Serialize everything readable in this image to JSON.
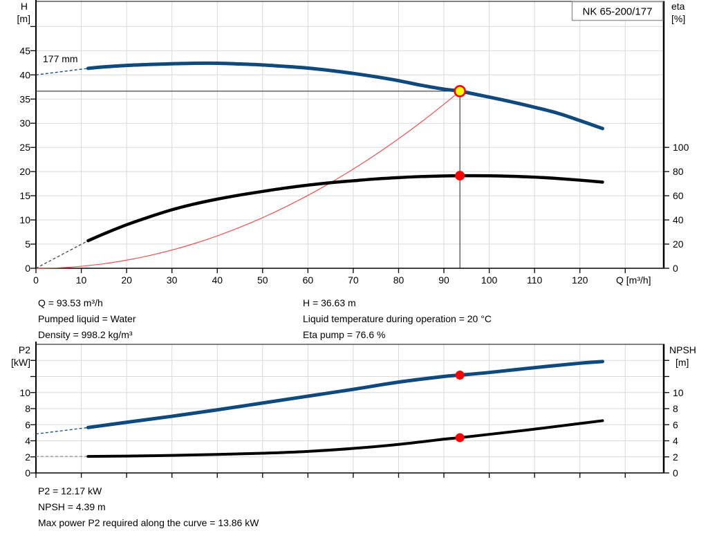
{
  "header": {
    "model_box_label": "NK 65-200/177"
  },
  "info": {
    "top_left": [
      "Q = 93.53 m³/h",
      "Pumped liquid = Water",
      "Density = 998.2 kg/m³"
    ],
    "top_right": [
      "H = 36.63 m",
      "Liquid temperature during operation = 20 °C",
      "Eta pump = 76.6 %"
    ],
    "bottom": [
      "P2 = 12.17 kW",
      "NPSH = 4.39 m",
      "Max power P2 required along the curve = 13.86 kW"
    ]
  },
  "duty_values": {
    "Q_m3h": 93.53,
    "H_m": 36.63,
    "eta_pct": 76.6,
    "P2_kW": 12.17,
    "NPSH_m": 4.39,
    "max_P2_kW": 13.86,
    "liquid": "Water",
    "temperature_C": 20,
    "density_kg_m3": 998.2
  },
  "colors": {
    "curve_blue": "#0e4a7d",
    "curve_black": "#000000",
    "system_red": "#f05050",
    "duty_dot": "#ff0000",
    "duty_ring_fill": "#ffff00",
    "duty_ring_stroke": "#ff0000",
    "grid": "#d9d9d9",
    "axis": "#000000",
    "crosshair": "#1a1a1a",
    "eta_lead": "#444444",
    "npsh_lead": "#999999",
    "box_border": "#9a9a9a"
  },
  "chart_data": [
    {
      "type": "line",
      "title": "NK 65-200/177",
      "impeller_label": "177 mm",
      "xlabel": "Q [m³/h]",
      "ylabel_left": [
        "H",
        "[m]"
      ],
      "ylabel_right": [
        "eta",
        "[%]"
      ],
      "xlim": [
        0,
        138.5
      ],
      "ylim": [
        0,
        55.2
      ],
      "grid": true,
      "x_ticks": [
        0,
        10,
        20,
        30,
        40,
        50,
        60,
        70,
        80,
        90,
        100,
        110,
        120
      ],
      "x_grid": [
        10,
        20,
        30,
        40,
        50,
        60,
        70,
        80,
        90,
        100,
        110,
        120,
        130
      ],
      "y_ticks": [
        0,
        5,
        10,
        15,
        20,
        25,
        30,
        35,
        40,
        45
      ],
      "y_grid": [
        5,
        10,
        15,
        20,
        25,
        30,
        35,
        40,
        45,
        50
      ],
      "eta_axis": {
        "ticks": [
          0,
          20,
          40,
          60,
          80,
          100
        ],
        "m_per_percent": 0.25
      },
      "series": [
        {
          "name": "head",
          "unit": "m",
          "color": "#0e4a7d",
          "width": 5,
          "dash_lead": [
            [
              0,
              40
            ],
            [
              11.5,
              41.35
            ]
          ],
          "points": [
            [
              11.5,
              41.35
            ],
            [
              15,
              41.65
            ],
            [
              20,
              41.95
            ],
            [
              25,
              42.15
            ],
            [
              30,
              42.3
            ],
            [
              35,
              42.4
            ],
            [
              40,
              42.4
            ],
            [
              45,
              42.25
            ],
            [
              50,
              42.05
            ],
            [
              55,
              41.75
            ],
            [
              60,
              41.4
            ],
            [
              65,
              40.9
            ],
            [
              70,
              40.3
            ],
            [
              75,
              39.6
            ],
            [
              80,
              38.8
            ],
            [
              85,
              37.85
            ],
            [
              90,
              37.05
            ],
            [
              93.53,
              36.63
            ],
            [
              100,
              35.4
            ],
            [
              105,
              34.4
            ],
            [
              110,
              33.3
            ],
            [
              115,
              32.1
            ],
            [
              120,
              30.55
            ],
            [
              125,
              28.9
            ]
          ]
        },
        {
          "name": "eta",
          "unit": "%",
          "color": "#000000",
          "width": 4.5,
          "dash_lead": [
            [
              0,
              0
            ],
            [
              11.5,
              22.8
            ]
          ],
          "points": [
            [
              11.5,
              22.8
            ],
            [
              15,
              28.5
            ],
            [
              20,
              36
            ],
            [
              25,
              42.5
            ],
            [
              30,
              48.4
            ],
            [
              35,
              53.2
            ],
            [
              40,
              57.2
            ],
            [
              45,
              60.6
            ],
            [
              50,
              63.6
            ],
            [
              55,
              66.4
            ],
            [
              60,
              68.8
            ],
            [
              65,
              70.8
            ],
            [
              70,
              72.4
            ],
            [
              75,
              73.9
            ],
            [
              80,
              75
            ],
            [
              85,
              75.9
            ],
            [
              90,
              76.4
            ],
            [
              93.53,
              76.6
            ],
            [
              100,
              76.5
            ],
            [
              105,
              76.1
            ],
            [
              110,
              75.4
            ],
            [
              115,
              74.3
            ],
            [
              120,
              72.9
            ],
            [
              125,
              71.3
            ]
          ]
        },
        {
          "name": "system",
          "unit": "m",
          "color": "#f05050",
          "width": 1.2,
          "points": [
            [
              0,
              0
            ],
            [
              5,
              0.1
            ],
            [
              10,
              0.42
            ],
            [
              15,
              0.94
            ],
            [
              20,
              1.68
            ],
            [
              25,
              2.62
            ],
            [
              30,
              3.77
            ],
            [
              35,
              5.13
            ],
            [
              40,
              6.7
            ],
            [
              45,
              8.48
            ],
            [
              50,
              10.47
            ],
            [
              55,
              12.67
            ],
            [
              60,
              15.08
            ],
            [
              65,
              17.69
            ],
            [
              70,
              20.52
            ],
            [
              75,
              23.55
            ],
            [
              80,
              26.8
            ],
            [
              85,
              30.25
            ],
            [
              90,
              33.92
            ],
            [
              93.53,
              36.63
            ]
          ]
        }
      ],
      "duty_point": {
        "Q": 93.53,
        "H": 36.63,
        "eta_pct": 76.6
      }
    },
    {
      "type": "line",
      "ylabel_left": [
        "P2",
        "[kW]"
      ],
      "ylabel_right": [
        "NPSH",
        "[m]"
      ],
      "xlim": [
        0,
        138.5
      ],
      "ylim": [
        0,
        16
      ],
      "grid": true,
      "x_grid": [
        10,
        20,
        30,
        40,
        50,
        60,
        70,
        80,
        90,
        100,
        110,
        120,
        130
      ],
      "y_ticks": [
        0,
        2,
        4,
        6,
        8,
        10
      ],
      "y_ticks_unlabeled": [
        12,
        14
      ],
      "y_grid": [
        2,
        4,
        6,
        8,
        10,
        12,
        14
      ],
      "series": [
        {
          "name": "p2",
          "unit": "kW",
          "color": "#0e4a7d",
          "width": 5,
          "dash_lead": [
            [
              0,
              4.85
            ],
            [
              11.5,
              5.65
            ]
          ],
          "points": [
            [
              11.5,
              5.65
            ],
            [
              20,
              6.3
            ],
            [
              30,
              7.05
            ],
            [
              40,
              7.85
            ],
            [
              50,
              8.7
            ],
            [
              60,
              9.55
            ],
            [
              70,
              10.4
            ],
            [
              80,
              11.3
            ],
            [
              90,
              12
            ],
            [
              93.53,
              12.17
            ],
            [
              100,
              12.5
            ],
            [
              110,
              13.1
            ],
            [
              120,
              13.65
            ],
            [
              125,
              13.86
            ]
          ]
        },
        {
          "name": "npsh",
          "unit": "m",
          "color": "#000000",
          "width": 4,
          "dash_lead": [
            [
              0,
              2.05
            ],
            [
              11.5,
              2.05
            ]
          ],
          "points": [
            [
              11.5,
              2.05
            ],
            [
              20,
              2.1
            ],
            [
              30,
              2.18
            ],
            [
              40,
              2.3
            ],
            [
              50,
              2.45
            ],
            [
              60,
              2.68
            ],
            [
              70,
              3.05
            ],
            [
              80,
              3.55
            ],
            [
              90,
              4.2
            ],
            [
              93.53,
              4.39
            ],
            [
              100,
              4.8
            ],
            [
              110,
              5.45
            ],
            [
              120,
              6.15
            ],
            [
              125,
              6.5
            ]
          ]
        }
      ],
      "duty_points": [
        {
          "series": "p2",
          "Q": 93.53,
          "v": 12.17
        },
        {
          "series": "npsh",
          "Q": 93.53,
          "v": 4.39
        }
      ]
    }
  ]
}
